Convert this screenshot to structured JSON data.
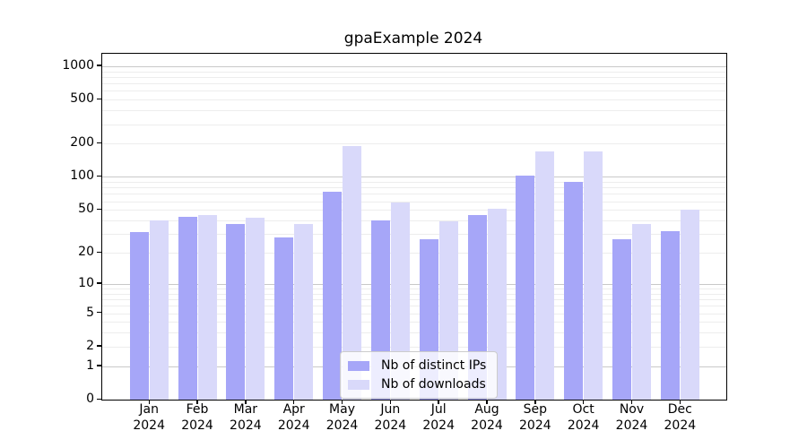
{
  "title": "gpaExample 2024",
  "chart_data": {
    "type": "bar",
    "title": "gpaExample 2024",
    "categories": [
      "Jan",
      "Feb",
      "Mar",
      "Apr",
      "May",
      "Jun",
      "Jul",
      "Aug",
      "Sep",
      "Oct",
      "Nov",
      "Dec"
    ],
    "x_year_line": "2024",
    "series": [
      {
        "name": "Nb of distinct IPs",
        "color": "#a6a6f8",
        "values": [
          31,
          43,
          37,
          28,
          74,
          40,
          27,
          45,
          103,
          91,
          27,
          32
        ]
      },
      {
        "name": "Nb of downloads",
        "color": "#d9d9fa",
        "values": [
          40,
          45,
          42,
          37,
          190,
          58,
          39,
          51,
          170,
          170,
          37,
          50
        ]
      }
    ],
    "y_ticks": [
      0,
      1,
      2,
      5,
      10,
      20,
      50,
      100,
      200,
      500,
      1000
    ],
    "scale": "log10(1+v)",
    "ylim": [
      0,
      1270
    ],
    "grid": true,
    "xlabel": "",
    "ylabel": "",
    "legend_position": "lower center",
    "colors": {
      "major_grid": "#c9c9c9",
      "minor_grid": "#ededed",
      "axis": "#000000",
      "legend_border": "#cccccc"
    }
  }
}
